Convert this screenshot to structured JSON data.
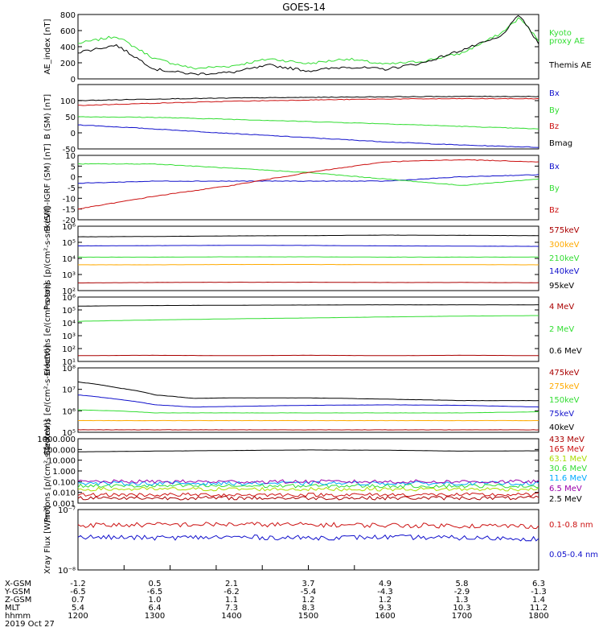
{
  "title": "GOES-14",
  "colors": {
    "black": "#000000",
    "green": "#33dd33",
    "red": "#cc1111",
    "blue": "#1111cc",
    "orange": "#ffaa00",
    "darkred": "#aa0000",
    "yellowgreen": "#aadd00",
    "cyan": "#00aaff",
    "purple": "#9900aa"
  },
  "chart_data": [
    {
      "type": "line",
      "ylabel": "AE_index [nT]",
      "yscale": "linear",
      "ylim": [
        0,
        800
      ],
      "yticks": [
        "0",
        "200",
        "400",
        "600",
        "800"
      ],
      "x": [
        1200,
        1230,
        1300,
        1330,
        1400,
        1430,
        1500,
        1530,
        1600,
        1630,
        1700,
        1730,
        1745,
        1800
      ],
      "series": [
        {
          "name": "Kyoto proxy AE",
          "color": "green",
          "values": [
            440,
            530,
            250,
            130,
            160,
            250,
            190,
            250,
            180,
            220,
            320,
            560,
            760,
            480
          ]
        },
        {
          "name": "Themis AE",
          "color": "black",
          "values": [
            330,
            420,
            120,
            60,
            80,
            170,
            100,
            150,
            120,
            200,
            360,
            520,
            800,
            430
          ]
        }
      ],
      "legend": [
        "Kyoto",
        "proxy AE",
        "Themis AE"
      ]
    },
    {
      "type": "line",
      "ylabel": "B (SM) [nT]",
      "yscale": "linear",
      "ylim": [
        -50,
        150
      ],
      "yticks": [
        "-50",
        "0",
        "50",
        "100"
      ],
      "x": [
        1200,
        1300,
        1400,
        1500,
        1600,
        1700,
        1800
      ],
      "series": [
        {
          "name": "Bx",
          "color": "blue",
          "values": [
            25,
            12,
            -2,
            -15,
            -28,
            -38,
            -45
          ]
        },
        {
          "name": "By",
          "color": "green",
          "values": [
            50,
            48,
            42,
            35,
            28,
            20,
            12
          ]
        },
        {
          "name": "Bz",
          "color": "red",
          "values": [
            85,
            92,
            98,
            102,
            105,
            106,
            106
          ]
        },
        {
          "name": "Bmag",
          "color": "black",
          "values": [
            100,
            105,
            108,
            110,
            112,
            113,
            113
          ]
        }
      ]
    },
    {
      "type": "line",
      "ylabel": "B (SM)-IGRF (SM) [nT]",
      "yscale": "linear",
      "ylim": [
        -20,
        10
      ],
      "yticks": [
        "-20",
        "-15",
        "-10",
        "-5",
        "0",
        "5",
        "10"
      ],
      "x": [
        1200,
        1300,
        1400,
        1500,
        1600,
        1700,
        1800
      ],
      "series": [
        {
          "name": "Bx",
          "color": "blue",
          "values": [
            -3,
            -2,
            -2,
            -2,
            -2,
            0,
            1
          ]
        },
        {
          "name": "By",
          "color": "green",
          "values": [
            6,
            6,
            4,
            2,
            -1,
            -4,
            -1
          ]
        },
        {
          "name": "Bz",
          "color": "red",
          "values": [
            -15,
            -9,
            -4,
            2,
            7,
            8,
            7
          ]
        }
      ]
    },
    {
      "type": "line",
      "ylabel": "Protons [p/(cm²-s-sr-keV)]",
      "yscale": "log",
      "ylim": [
        100,
        1000000
      ],
      "yticks": [
        "10²",
        "10³",
        "10⁴",
        "10⁵",
        "10⁶"
      ],
      "x": [
        1200,
        1300,
        1400,
        1500,
        1600,
        1700,
        1800
      ],
      "series": [
        {
          "name": "575keV",
          "color": "darkred",
          "values": [
            300,
            320,
            330,
            330,
            320,
            320,
            310
          ]
        },
        {
          "name": "300keV",
          "color": "orange",
          "values": [
            4000,
            4000,
            4200,
            4200,
            4100,
            4100,
            4000
          ]
        },
        {
          "name": "210keV",
          "color": "green",
          "values": [
            12000,
            12000,
            12500,
            12500,
            12000,
            12000,
            12000
          ]
        },
        {
          "name": "140keV",
          "color": "blue",
          "values": [
            60000,
            62000,
            65000,
            64000,
            60000,
            58000,
            56000
          ]
        },
        {
          "name": "95keV",
          "color": "black",
          "values": [
            220000,
            230000,
            250000,
            260000,
            280000,
            270000,
            260000
          ]
        }
      ]
    },
    {
      "type": "line",
      "ylabel": "Electrons [e/(cm²-s-sr)]",
      "yscale": "log",
      "ylim": [
        5,
        1000000
      ],
      "yticks": [
        "10¹",
        "10²",
        "10³",
        "10⁴",
        "10⁵",
        "10⁶"
      ],
      "x": [
        1200,
        1300,
        1400,
        1500,
        1600,
        1700,
        1800
      ],
      "series": [
        {
          "name": "4 MeV",
          "color": "darkred",
          "values": [
            15,
            16,
            15,
            16,
            15,
            16,
            15
          ]
        },
        {
          "name": "2 MeV",
          "color": "green",
          "values": [
            10000,
            13000,
            16000,
            19000,
            23000,
            27000,
            30000
          ]
        },
        {
          "name": "0.6 MeV",
          "color": "black",
          "values": [
            180000,
            200000,
            210000,
            220000,
            230000,
            230000,
            230000
          ]
        }
      ]
    },
    {
      "type": "line",
      "ylabel": "Electrons [e/(cm²-s-sr-keV)]",
      "yscale": "log",
      "ylim": [
        100000,
        100000000
      ],
      "yticks": [
        "10⁵",
        "10⁶",
        "10⁷",
        "10⁸"
      ],
      "x": [
        1200,
        1230,
        1300,
        1330,
        1400,
        1500,
        1600,
        1700,
        1800
      ],
      "series": [
        {
          "name": "475keV",
          "color": "darkred",
          "values": [
            130000,
            130000,
            130000,
            130000,
            130000,
            130000,
            130000,
            130000,
            130000
          ]
        },
        {
          "name": "275keV",
          "color": "orange",
          "values": [
            350000,
            350000,
            350000,
            350000,
            350000,
            350000,
            350000,
            350000,
            350000
          ]
        },
        {
          "name": "150keV",
          "color": "green",
          "values": [
            1100000,
            1000000,
            800000,
            800000,
            800000,
            800000,
            800000,
            800000,
            900000
          ]
        },
        {
          "name": "75keV",
          "color": "blue",
          "values": [
            5500000,
            3500000,
            1900000,
            1500000,
            1600000,
            1800000,
            1900000,
            1800000,
            1500000
          ]
        },
        {
          "name": "40keV",
          "color": "black",
          "values": [
            22000000,
            12000000,
            5500000,
            3800000,
            4000000,
            4000000,
            3500000,
            3000000,
            3000000
          ]
        }
      ]
    },
    {
      "type": "line",
      "ylabel": "Protons [p/(cm²-s-sr-keV)]",
      "yscale": "log",
      "ylim": [
        0.001,
        1000
      ],
      "yticks": [
        "0.001",
        "0.010",
        "0.100",
        "1.000",
        "10.000",
        "100.000",
        "1000.000"
      ],
      "x": [
        1200,
        1300,
        1400,
        1500,
        1600,
        1700,
        1800
      ],
      "series": [
        {
          "name": "433 MeV",
          "color": "darkred",
          "values": [
            0.003,
            0.003,
            0.003,
            0.003,
            0.003,
            0.003,
            0.003
          ]
        },
        {
          "name": "165 MeV",
          "color": "red",
          "values": [
            0.006,
            0.006,
            0.006,
            0.006,
            0.006,
            0.006,
            0.006
          ]
        },
        {
          "name": "63.1 MeV",
          "color": "yellowgreen",
          "values": [
            0.02,
            0.02,
            0.02,
            0.02,
            0.02,
            0.02,
            0.02
          ]
        },
        {
          "name": "30.6 MeV",
          "color": "green",
          "values": [
            0.04,
            0.04,
            0.04,
            0.04,
            0.04,
            0.04,
            0.04
          ]
        },
        {
          "name": "11.6 MeV",
          "color": "cyan",
          "values": [
            0.07,
            0.07,
            0.07,
            0.07,
            0.07,
            0.07,
            0.07
          ]
        },
        {
          "name": "6.5 MeV",
          "color": "purple",
          "values": [
            0.1,
            0.1,
            0.1,
            0.1,
            0.1,
            0.1,
            0.1
          ]
        },
        {
          "name": "2.5 MeV",
          "color": "black",
          "values": [
            60,
            70,
            80,
            90,
            85,
            70,
            75
          ]
        }
      ]
    },
    {
      "type": "line",
      "ylabel": "Xray Flux [W/m²]",
      "yscale": "log",
      "ylim": [
        1e-08,
        1e-07
      ],
      "yticks": [
        "10⁻⁸",
        "10⁻⁷"
      ],
      "x": [
        1200,
        1300,
        1400,
        1500,
        1600,
        1700,
        1800
      ],
      "series": [
        {
          "name": "0.1-0.8 nm",
          "color": "red",
          "values": [
            5.5e-08,
            5.6e-08,
            5.7e-08,
            5.6e-08,
            5.5e-08,
            5.4e-08,
            5.3e-08
          ]
        },
        {
          "name": "0.05-0.4 nm",
          "color": "blue",
          "values": [
            3.5e-08,
            3.4e-08,
            3.5e-08,
            3.4e-08,
            3.5e-08,
            3.4e-08,
            3.3e-08
          ]
        }
      ]
    }
  ],
  "xaxis": {
    "rows": [
      {
        "label": "X-GSM",
        "values": [
          "-1.2",
          "0.5",
          "2.1",
          "3.7",
          "4.9",
          "5.8",
          "6.3"
        ]
      },
      {
        "label": "Y-GSM",
        "values": [
          "-6.5",
          "-6.5",
          "-6.2",
          "-5.4",
          "-4.3",
          "-2.9",
          "-1.3"
        ]
      },
      {
        "label": "Z-GSM",
        "values": [
          "0.7",
          "1.0",
          "1.1",
          "1.2",
          "1.2",
          "1.3",
          "1.4"
        ]
      },
      {
        "label": "MLT",
        "values": [
          "5.4",
          "6.4",
          "7.3",
          "8.3",
          "9.3",
          "10.3",
          "11.2"
        ]
      },
      {
        "label": "hhmm",
        "values": [
          "1200",
          "1300",
          "1400",
          "1500",
          "1600",
          "1700",
          "1800"
        ]
      }
    ],
    "date": "2019 Oct 27"
  }
}
